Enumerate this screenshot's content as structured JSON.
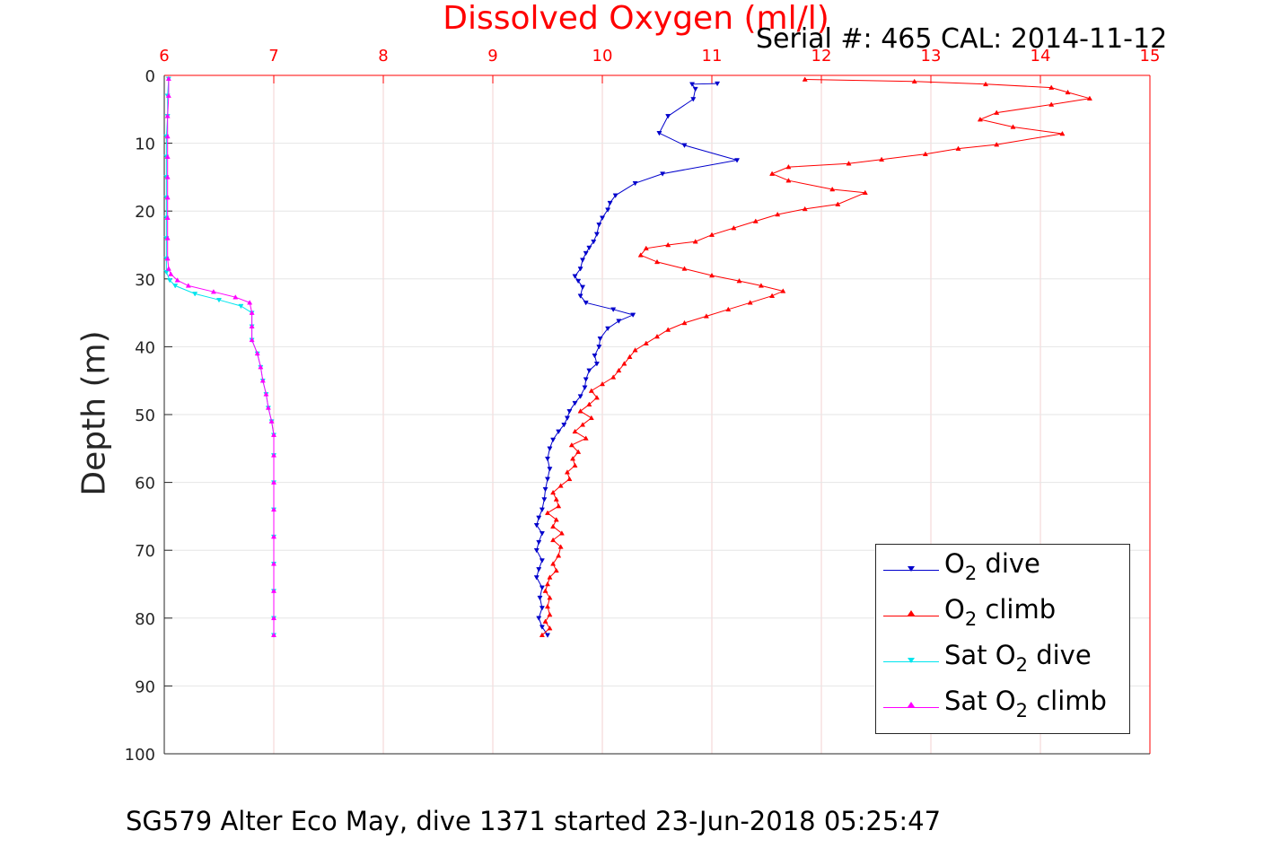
{
  "title": "Dissolved Oxygen (ml/l)",
  "serial_text": "Serial #: 465  CAL: 2014-11-12",
  "footer_text": "SG579 Alter Eco May, dive 1371 started 23-Jun-2018 05:25:47",
  "colors": {
    "title": "#ff0000",
    "o2_dive": "#0000cc",
    "o2_climb": "#ff0000",
    "sat_dive": "#00e5ee",
    "sat_climb": "#ff00ff",
    "grid": "#e6e6e6",
    "axis": "#262626",
    "top_axis": "#ff0000"
  },
  "legend": [
    {
      "pre": "O",
      "sub": "2",
      "post": " dive"
    },
    {
      "pre": "O",
      "sub": "2",
      "post": " climb"
    },
    {
      "pre": "Sat O",
      "sub": "2",
      "post": " dive"
    },
    {
      "pre": "Sat O",
      "sub": "2",
      "post": " climb"
    }
  ],
  "chart_data": {
    "type": "line",
    "title": "Dissolved Oxygen (ml/l)",
    "xlabel": "Dissolved Oxygen (ml/l)",
    "ylabel": "Depth (m)",
    "xlim": [
      6,
      15
    ],
    "ylim": [
      0,
      100
    ],
    "y_reversed": true,
    "x_ticks": [
      "6",
      "7",
      "8",
      "9",
      "10",
      "11",
      "12",
      "13",
      "14",
      "15"
    ],
    "y_ticks": [
      "0",
      "10",
      "20",
      "30",
      "40",
      "50",
      "60",
      "70",
      "80",
      "90",
      "100"
    ],
    "x_axis_position": "top",
    "grid": true,
    "legend_position": "bottom-right",
    "series": [
      {
        "name": "O2 dive",
        "color": "#0000cc",
        "marker": "triangle-down",
        "points": [
          [
            11.05,
            1.2
          ],
          [
            10.82,
            1.3
          ],
          [
            10.85,
            2.0
          ],
          [
            10.83,
            3.5
          ],
          [
            10.6,
            6
          ],
          [
            10.52,
            8.5
          ],
          [
            10.75,
            10.3
          ],
          [
            11.23,
            12.5
          ],
          [
            10.55,
            14.5
          ],
          [
            10.3,
            15.9
          ],
          [
            10.12,
            17.7
          ],
          [
            10.07,
            18.8
          ],
          [
            10.05,
            19.8
          ],
          [
            10.0,
            21.0
          ],
          [
            9.97,
            22.0
          ],
          [
            9.95,
            23.4
          ],
          [
            9.92,
            24.5
          ],
          [
            9.88,
            25.4
          ],
          [
            9.85,
            26.2
          ],
          [
            9.82,
            27.2
          ],
          [
            9.8,
            28.5
          ],
          [
            9.75,
            29.6
          ],
          [
            9.78,
            30.3
          ],
          [
            9.82,
            31.2
          ],
          [
            9.8,
            32.5
          ],
          [
            9.85,
            33.5
          ],
          [
            10.1,
            34.5
          ],
          [
            10.28,
            35.3
          ],
          [
            10.15,
            36.2
          ],
          [
            10.05,
            37.3
          ],
          [
            9.98,
            38.8
          ],
          [
            9.97,
            40.0
          ],
          [
            9.93,
            41.3
          ],
          [
            9.95,
            42.5
          ],
          [
            9.88,
            43.5
          ],
          [
            9.85,
            44.8
          ],
          [
            9.84,
            46.0
          ],
          [
            9.8,
            47.3
          ],
          [
            9.75,
            48.3
          ],
          [
            9.7,
            49.5
          ],
          [
            9.68,
            50.5
          ],
          [
            9.65,
            51.5
          ],
          [
            9.6,
            52.5
          ],
          [
            9.55,
            53.7
          ],
          [
            9.52,
            55.0
          ],
          [
            9.5,
            56.5
          ],
          [
            9.52,
            58.0
          ],
          [
            9.5,
            59.5
          ],
          [
            9.48,
            61.0
          ],
          [
            9.47,
            62.5
          ],
          [
            9.45,
            64.0
          ],
          [
            9.42,
            65.2
          ],
          [
            9.4,
            66.3
          ],
          [
            9.45,
            67.5
          ],
          [
            9.42,
            68.8
          ],
          [
            9.4,
            70.0
          ],
          [
            9.45,
            71.5
          ],
          [
            9.42,
            72.8
          ],
          [
            9.4,
            74.0
          ],
          [
            9.45,
            75.5
          ],
          [
            9.43,
            77.0
          ],
          [
            9.45,
            78.5
          ],
          [
            9.42,
            80.0
          ],
          [
            9.45,
            81.3
          ],
          [
            9.5,
            82.5
          ]
        ]
      },
      {
        "name": "O2 climb",
        "color": "#ff0000",
        "marker": "triangle-up",
        "points": [
          [
            9.45,
            82.5
          ],
          [
            9.52,
            81.5
          ],
          [
            9.48,
            80.5
          ],
          [
            9.52,
            79.5
          ],
          [
            9.5,
            78.3
          ],
          [
            9.52,
            77.0
          ],
          [
            9.48,
            76.0
          ],
          [
            9.5,
            75.0
          ],
          [
            9.52,
            74.0
          ],
          [
            9.58,
            73.0
          ],
          [
            9.55,
            72.0
          ],
          [
            9.6,
            70.8
          ],
          [
            9.62,
            69.5
          ],
          [
            9.55,
            68.5
          ],
          [
            9.63,
            67.5
          ],
          [
            9.55,
            66.5
          ],
          [
            9.58,
            65.5
          ],
          [
            9.5,
            64.5
          ],
          [
            9.6,
            63.5
          ],
          [
            9.58,
            62.5
          ],
          [
            9.55,
            61.5
          ],
          [
            9.62,
            60.5
          ],
          [
            9.7,
            59.5
          ],
          [
            9.68,
            58.5
          ],
          [
            9.75,
            57.5
          ],
          [
            9.73,
            56.5
          ],
          [
            9.78,
            55.5
          ],
          [
            9.72,
            54.5
          ],
          [
            9.85,
            53.5
          ],
          [
            9.75,
            52.5
          ],
          [
            9.82,
            51.5
          ],
          [
            9.9,
            50.5
          ],
          [
            9.8,
            49.5
          ],
          [
            9.88,
            48.5
          ],
          [
            9.95,
            47.5
          ],
          [
            9.9,
            46.5
          ],
          [
            10.0,
            45.5
          ],
          [
            10.1,
            44.5
          ],
          [
            10.15,
            43.5
          ],
          [
            10.2,
            42.5
          ],
          [
            10.25,
            41.5
          ],
          [
            10.3,
            40.5
          ],
          [
            10.4,
            39.5
          ],
          [
            10.5,
            38.5
          ],
          [
            10.6,
            37.5
          ],
          [
            10.75,
            36.5
          ],
          [
            10.95,
            35.5
          ],
          [
            11.15,
            34.5
          ],
          [
            11.35,
            33.5
          ],
          [
            11.55,
            32.5
          ],
          [
            11.65,
            31.8
          ],
          [
            11.45,
            31.0
          ],
          [
            11.25,
            30.3
          ],
          [
            11.0,
            29.5
          ],
          [
            10.75,
            28.5
          ],
          [
            10.5,
            27.5
          ],
          [
            10.35,
            26.5
          ],
          [
            10.4,
            25.5
          ],
          [
            10.6,
            25.0
          ],
          [
            10.85,
            24.5
          ],
          [
            11.0,
            23.5
          ],
          [
            11.2,
            22.5
          ],
          [
            11.4,
            21.5
          ],
          [
            11.6,
            20.5
          ],
          [
            11.85,
            19.7
          ],
          [
            12.15,
            19.0
          ],
          [
            12.4,
            17.3
          ],
          [
            12.1,
            16.8
          ],
          [
            11.7,
            15.5
          ],
          [
            11.55,
            14.5
          ],
          [
            11.7,
            13.5
          ],
          [
            12.25,
            13.0
          ],
          [
            12.55,
            12.4
          ],
          [
            12.95,
            11.6
          ],
          [
            13.25,
            10.8
          ],
          [
            13.6,
            10.2
          ],
          [
            14.2,
            8.6
          ],
          [
            13.75,
            7.6
          ],
          [
            13.45,
            6.5
          ],
          [
            13.6,
            5.5
          ],
          [
            14.1,
            4.3
          ],
          [
            14.45,
            3.4
          ],
          [
            14.25,
            2.5
          ],
          [
            14.1,
            1.8
          ],
          [
            13.5,
            1.3
          ],
          [
            12.85,
            0.9
          ],
          [
            11.85,
            0.6
          ]
        ]
      },
      {
        "name": "Sat O2 dive",
        "color": "#00e5ee",
        "marker": "triangle-down",
        "points": [
          [
            6.04,
            0.5
          ],
          [
            6.03,
            3
          ],
          [
            6.03,
            6
          ],
          [
            6.02,
            9
          ],
          [
            6.02,
            12
          ],
          [
            6.02,
            15
          ],
          [
            6.02,
            18
          ],
          [
            6.02,
            21
          ],
          [
            6.02,
            24
          ],
          [
            6.02,
            27
          ],
          [
            6.02,
            29
          ],
          [
            6.05,
            30.2
          ],
          [
            6.1,
            31.0
          ],
          [
            6.28,
            32.2
          ],
          [
            6.5,
            33.1
          ],
          [
            6.7,
            34.0
          ],
          [
            6.8,
            35.0
          ],
          [
            6.8,
            37
          ],
          [
            6.8,
            39
          ],
          [
            6.85,
            41
          ],
          [
            6.88,
            43
          ],
          [
            6.9,
            45
          ],
          [
            6.93,
            47
          ],
          [
            6.95,
            49
          ],
          [
            6.98,
            51
          ],
          [
            7.0,
            53
          ],
          [
            7.0,
            56
          ],
          [
            7.0,
            60
          ],
          [
            7.0,
            64
          ],
          [
            7.0,
            68
          ],
          [
            7.0,
            72
          ],
          [
            7.0,
            76
          ],
          [
            7.0,
            80
          ],
          [
            7.0,
            82.5
          ]
        ]
      },
      {
        "name": "Sat O2 climb",
        "color": "#ff00ff",
        "marker": "triangle-up",
        "points": [
          [
            7.0,
            82.5
          ],
          [
            7.0,
            80
          ],
          [
            7.0,
            76
          ],
          [
            7.0,
            72
          ],
          [
            7.0,
            68
          ],
          [
            7.0,
            64
          ],
          [
            7.0,
            60
          ],
          [
            7.0,
            56
          ],
          [
            7.0,
            53
          ],
          [
            6.98,
            51
          ],
          [
            6.95,
            49
          ],
          [
            6.93,
            47
          ],
          [
            6.9,
            45
          ],
          [
            6.88,
            43
          ],
          [
            6.85,
            41
          ],
          [
            6.8,
            39
          ],
          [
            6.8,
            37
          ],
          [
            6.8,
            35
          ],
          [
            6.78,
            33.5
          ],
          [
            6.65,
            32.7
          ],
          [
            6.45,
            31.9
          ],
          [
            6.22,
            31.0
          ],
          [
            6.12,
            30.2
          ],
          [
            6.06,
            29.3
          ],
          [
            6.04,
            28.5
          ],
          [
            6.03,
            27
          ],
          [
            6.03,
            24
          ],
          [
            6.03,
            21
          ],
          [
            6.03,
            18
          ],
          [
            6.03,
            15
          ],
          [
            6.03,
            12
          ],
          [
            6.03,
            9
          ],
          [
            6.03,
            6
          ],
          [
            6.04,
            3
          ],
          [
            6.04,
            0.5
          ]
        ]
      }
    ]
  }
}
